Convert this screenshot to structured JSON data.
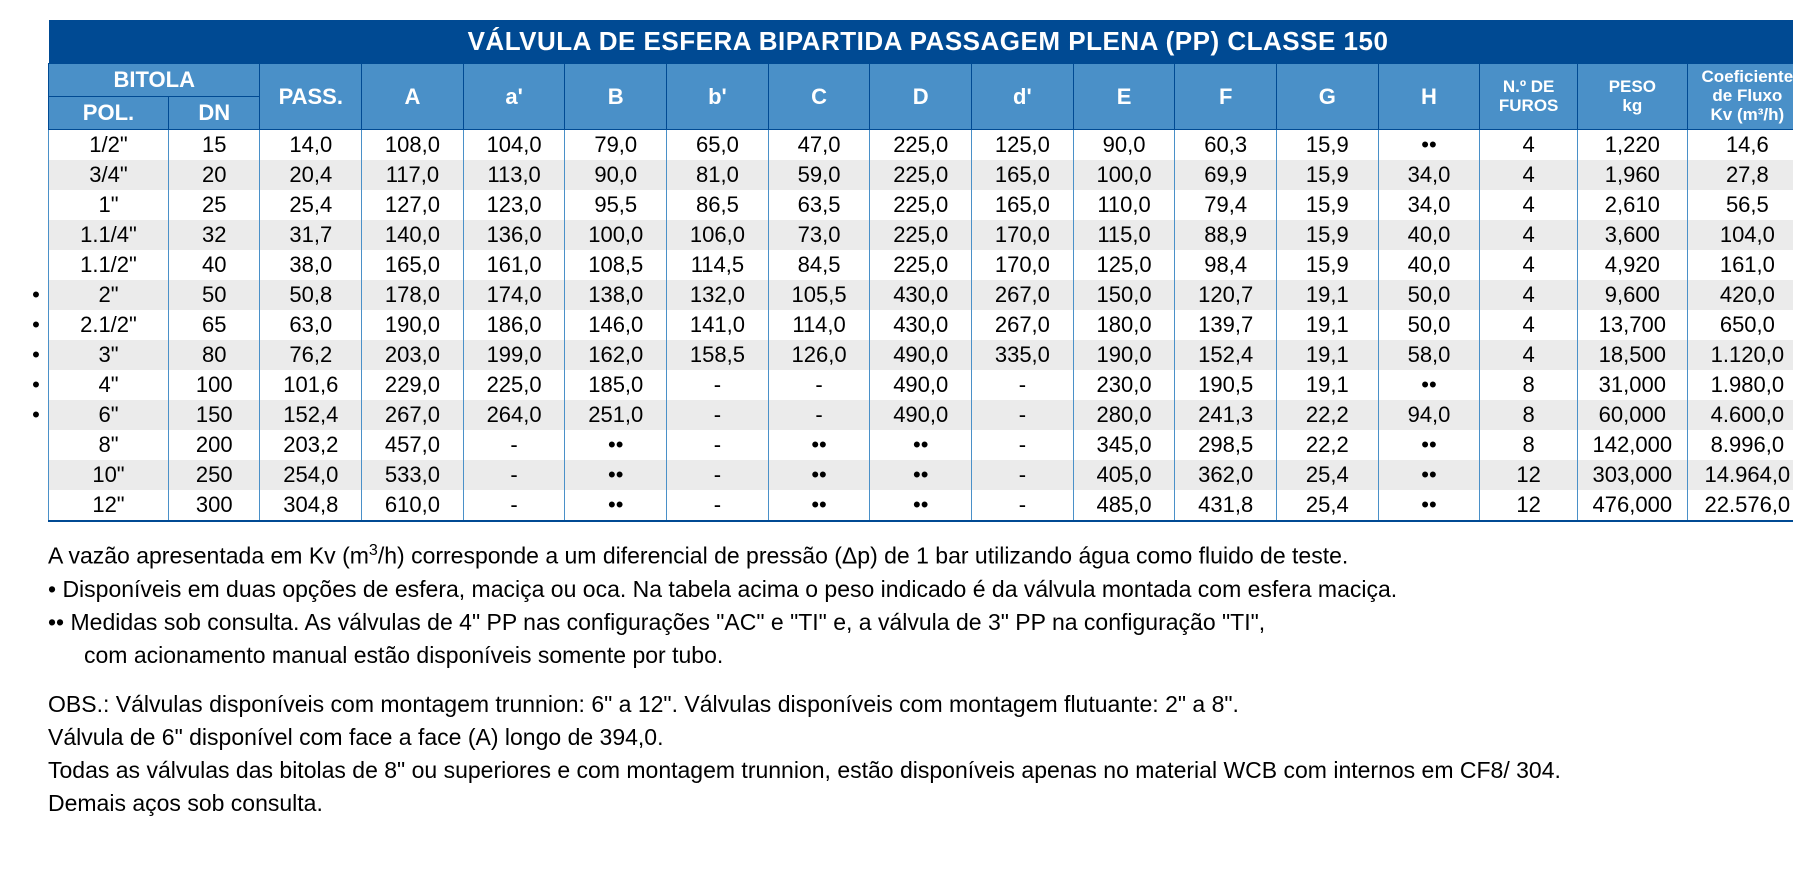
{
  "table": {
    "title": "VÁLVULA DE ESFERA BIPARTIDA PASSAGEM PLENA (PP) CLASSE 150",
    "title_bg": "#004a93",
    "header_bg": "#4a90c8",
    "border_color": "#004a93",
    "cell_border_color": "#4a90c8",
    "row_bg_odd": "#ffffff",
    "row_bg_even": "#ebebeb",
    "col_widths": [
      "118",
      "90",
      "100",
      "100",
      "100",
      "100",
      "100",
      "100",
      "100",
      "100",
      "100",
      "100",
      "100",
      "100",
      "96",
      "108",
      "118"
    ],
    "headers": {
      "bitola": "BITOLA",
      "pol": "POL.",
      "dn": "DN",
      "pass": "PASS.",
      "A": "A",
      "a": "a'",
      "B": "B",
      "b": "b'",
      "C": "C",
      "D": "D",
      "d": "d'",
      "E": "E",
      "F": "F",
      "G": "G",
      "H": "H",
      "furos_l1": "N.º DE",
      "furos_l2": "FUROS",
      "peso_l1": "PESO",
      "peso_l2": "kg",
      "kv_l1": "Coeficiente",
      "kv_l2": "de Fluxo",
      "kv_l3": "Kv (m³/h)"
    },
    "rows": [
      {
        "bullet": false,
        "cells": [
          "1/2\"",
          "15",
          "14,0",
          "108,0",
          "104,0",
          "79,0",
          "65,0",
          "47,0",
          "225,0",
          "125,0",
          "90,0",
          "60,3",
          "15,9",
          "••",
          "4",
          "1,220",
          "14,6"
        ]
      },
      {
        "bullet": false,
        "cells": [
          "3/4\"",
          "20",
          "20,4",
          "117,0",
          "113,0",
          "90,0",
          "81,0",
          "59,0",
          "225,0",
          "165,0",
          "100,0",
          "69,9",
          "15,9",
          "34,0",
          "4",
          "1,960",
          "27,8"
        ]
      },
      {
        "bullet": false,
        "cells": [
          "1\"",
          "25",
          "25,4",
          "127,0",
          "123,0",
          "95,5",
          "86,5",
          "63,5",
          "225,0",
          "165,0",
          "110,0",
          "79,4",
          "15,9",
          "34,0",
          "4",
          "2,610",
          "56,5"
        ]
      },
      {
        "bullet": false,
        "cells": [
          "1.1/4\"",
          "32",
          "31,7",
          "140,0",
          "136,0",
          "100,0",
          "106,0",
          "73,0",
          "225,0",
          "170,0",
          "115,0",
          "88,9",
          "15,9",
          "40,0",
          "4",
          "3,600",
          "104,0"
        ]
      },
      {
        "bullet": false,
        "cells": [
          "1.1/2\"",
          "40",
          "38,0",
          "165,0",
          "161,0",
          "108,5",
          "114,5",
          "84,5",
          "225,0",
          "170,0",
          "125,0",
          "98,4",
          "15,9",
          "40,0",
          "4",
          "4,920",
          "161,0"
        ]
      },
      {
        "bullet": true,
        "cells": [
          "2\"",
          "50",
          "50,8",
          "178,0",
          "174,0",
          "138,0",
          "132,0",
          "105,5",
          "430,0",
          "267,0",
          "150,0",
          "120,7",
          "19,1",
          "50,0",
          "4",
          "9,600",
          "420,0"
        ]
      },
      {
        "bullet": true,
        "cells": [
          "2.1/2\"",
          "65",
          "63,0",
          "190,0",
          "186,0",
          "146,0",
          "141,0",
          "114,0",
          "430,0",
          "267,0",
          "180,0",
          "139,7",
          "19,1",
          "50,0",
          "4",
          "13,700",
          "650,0"
        ]
      },
      {
        "bullet": true,
        "cells": [
          "3\"",
          "80",
          "76,2",
          "203,0",
          "199,0",
          "162,0",
          "158,5",
          "126,0",
          "490,0",
          "335,0",
          "190,0",
          "152,4",
          "19,1",
          "58,0",
          "4",
          "18,500",
          "1.120,0"
        ]
      },
      {
        "bullet": true,
        "cells": [
          "4\"",
          "100",
          "101,6",
          "229,0",
          "225,0",
          "185,0",
          "-",
          "-",
          "490,0",
          "-",
          "230,0",
          "190,5",
          "19,1",
          "••",
          "8",
          "31,000",
          "1.980,0"
        ]
      },
      {
        "bullet": true,
        "cells": [
          "6\"",
          "150",
          "152,4",
          "267,0",
          "264,0",
          "251,0",
          "-",
          "-",
          "490,0",
          "-",
          "280,0",
          "241,3",
          "22,2",
          "94,0",
          "8",
          "60,000",
          "4.600,0"
        ]
      },
      {
        "bullet": false,
        "cells": [
          "8\"",
          "200",
          "203,2",
          "457,0",
          "-",
          "••",
          "-",
          "••",
          "••",
          "-",
          "345,0",
          "298,5",
          "22,2",
          "••",
          "8",
          "142,000",
          "8.996,0"
        ]
      },
      {
        "bullet": false,
        "cells": [
          "10\"",
          "250",
          "254,0",
          "533,0",
          "-",
          "••",
          "-",
          "••",
          "••",
          "-",
          "405,0",
          "362,0",
          "25,4",
          "••",
          "12",
          "303,000",
          "14.964,0"
        ]
      },
      {
        "bullet": false,
        "cells": [
          "12\"",
          "300",
          "304,8",
          "610,0",
          "-",
          "••",
          "-",
          "••",
          "••",
          "-",
          "485,0",
          "431,8",
          "25,4",
          "••",
          "12",
          "476,000",
          "22.576,0"
        ]
      }
    ]
  },
  "notes": {
    "line1_pre": "A vazão apresentada em Kv (m",
    "line1_sup": "3",
    "line1_post": "/h) corresponde a um diferencial de pressão (Δp) de 1 bar utilizando água como fluido de teste.",
    "line2": "• Disponíveis em duas opções de esfera, maciça ou oca. Na tabela acima o peso indicado é da válvula montada com esfera maciça.",
    "line3": "•• Medidas sob consulta. As válvulas de 4\" PP nas configurações \"AC\" e \"TI\" e, a válvula de 3\" PP na configuração \"TI\",",
    "line4": "com acionamento manual estão disponíveis somente por tubo.",
    "line5": "OBS.: Válvulas disponíveis com montagem trunnion: 6\" a  12\". Válvulas disponíveis com montagem flutuante: 2\" a  8\".",
    "line6": "Válvula de 6\" disponível com face a face (A) longo de 394,0.",
    "line7": "Todas as válvulas das bitolas de 8\" ou superiores e com montagem trunnion, estão disponíveis apenas no material WCB com internos em CF8/ 304.",
    "line8": "Demais aços sob consulta."
  }
}
